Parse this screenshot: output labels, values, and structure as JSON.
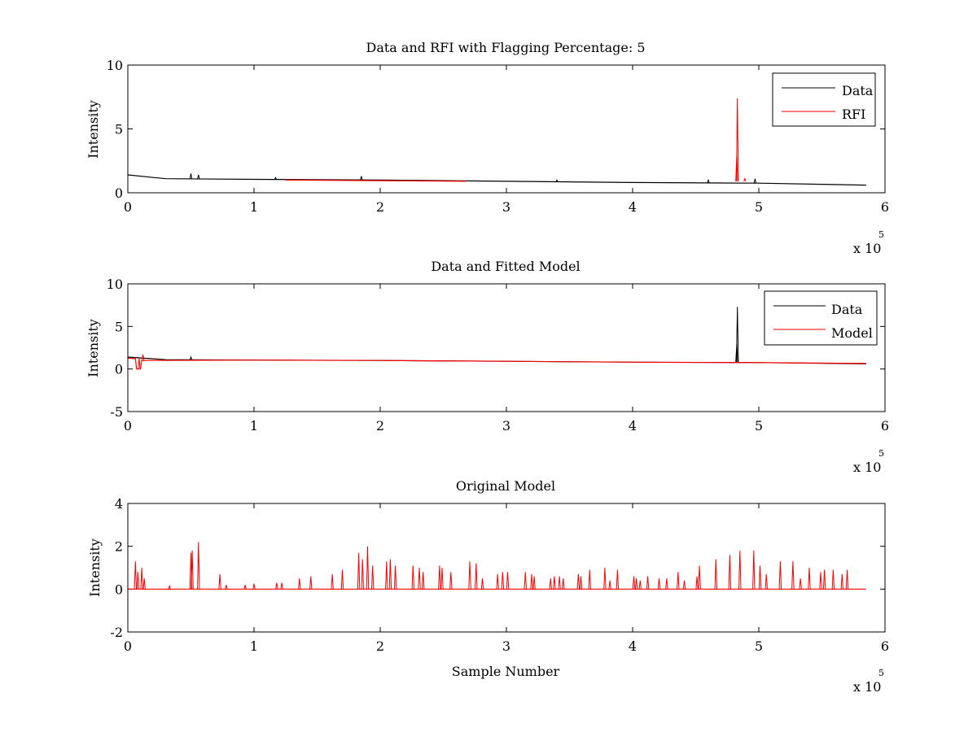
{
  "colors": {
    "data": "#000000",
    "rfi": "#ff0000",
    "model": "#ff0000",
    "axes": "#000000",
    "background": "#ffffff"
  },
  "chart_data": [
    {
      "type": "line",
      "title": "Data and RFI with Flagging Percentage: 5",
      "xlabel": "",
      "ylabel": "Intensity",
      "xlim": [
        0,
        600000
      ],
      "ylim": [
        0,
        10
      ],
      "xticks": [
        "0",
        "1",
        "2",
        "3",
        "4",
        "5",
        "6"
      ],
      "yticks": [
        "0",
        "5",
        "10"
      ],
      "x_exponent": {
        "base": "x 10",
        "power": "5"
      },
      "legend": {
        "location": "top-right",
        "entries": [
          "Data",
          "RFI"
        ]
      },
      "series": [
        {
          "name": "Data",
          "color": "#000000",
          "baseline": [
            [
              0,
              1.4
            ],
            [
              20000,
              1.2
            ],
            [
              30000,
              1.1
            ],
            [
              100000,
              1.05
            ],
            [
              200000,
              1.0
            ],
            [
              300000,
              0.9
            ],
            [
              400000,
              0.8
            ],
            [
              500000,
              0.75
            ],
            [
              585000,
              0.6
            ]
          ],
          "spikes": [
            [
              50000,
              1.5
            ],
            [
              56000,
              1.4
            ],
            [
              117000,
              1.2
            ],
            [
              185000,
              1.3
            ],
            [
              340000,
              1.0
            ],
            [
              460000,
              1.0
            ],
            [
              497000,
              1.1
            ]
          ]
        },
        {
          "name": "RFI",
          "color": "#ff0000",
          "baseline": [
            [
              125000,
              1.0
            ],
            [
              200000,
              0.95
            ],
            [
              268000,
              0.9
            ]
          ],
          "spikes": [
            [
              483000,
              7.4
            ],
            [
              482500,
              2.9
            ],
            [
              489000,
              1.1
            ]
          ]
        }
      ]
    },
    {
      "type": "line",
      "title": "Data and Fitted Model",
      "xlabel": "",
      "ylabel": "Intensity",
      "xlim": [
        0,
        600000
      ],
      "ylim": [
        -5,
        10
      ],
      "xticks": [
        "0",
        "1",
        "2",
        "3",
        "4",
        "5",
        "6"
      ],
      "yticks": [
        "-5",
        "0",
        "5",
        "10"
      ],
      "x_exponent": {
        "base": "x 10",
        "power": "5"
      },
      "legend": {
        "location": "top-right",
        "entries": [
          "Data",
          "Model"
        ]
      },
      "series": [
        {
          "name": "Data",
          "color": "#000000",
          "baseline": [
            [
              0,
              1.4
            ],
            [
              20000,
              1.2
            ],
            [
              30000,
              1.1
            ],
            [
              100000,
              1.05
            ],
            [
              200000,
              1.0
            ],
            [
              300000,
              0.9
            ],
            [
              400000,
              0.8
            ],
            [
              500000,
              0.75
            ],
            [
              585000,
              0.6
            ]
          ],
          "spikes": [
            [
              483000,
              7.3
            ],
            [
              482500,
              2.9
            ],
            [
              50000,
              1.4
            ]
          ]
        },
        {
          "name": "Model",
          "color": "#ff0000",
          "baseline": [
            [
              0,
              1.3
            ],
            [
              6000,
              1.2
            ],
            [
              7000,
              0.0
            ],
            [
              10000,
              0.0
            ],
            [
              11000,
              1.0
            ],
            [
              100000,
              1.05
            ],
            [
              200000,
              1.0
            ],
            [
              300000,
              0.9
            ],
            [
              400000,
              0.8
            ],
            [
              500000,
              0.75
            ],
            [
              585000,
              0.65
            ]
          ],
          "spikes": [
            [
              12000,
              1.7
            ],
            [
              9000,
              1.3
            ]
          ]
        }
      ]
    },
    {
      "type": "line",
      "title": "Original Model",
      "xlabel": "Sample Number",
      "ylabel": "Intensity",
      "xlim": [
        0,
        600000
      ],
      "ylim": [
        -2,
        4
      ],
      "xticks": [
        "0",
        "1",
        "2",
        "3",
        "4",
        "5",
        "6"
      ],
      "yticks": [
        "-2",
        "0",
        "2",
        "4"
      ],
      "x_exponent": {
        "base": "x 10",
        "power": "5"
      },
      "series": [
        {
          "color": "#ff0000",
          "baseline": [
            [
              0,
              0
            ],
            [
              585000,
              0
            ]
          ],
          "spikes": [
            [
              6000,
              1.3
            ],
            [
              8000,
              0.8
            ],
            [
              11000,
              1.0
            ],
            [
              13000,
              0.5
            ],
            [
              33000,
              0.15
            ],
            [
              50000,
              1.7
            ],
            [
              51000,
              1.8
            ],
            [
              56000,
              2.2
            ],
            [
              73000,
              0.7
            ],
            [
              78000,
              0.2
            ],
            [
              93000,
              0.2
            ],
            [
              100000,
              0.25
            ],
            [
              118000,
              0.3
            ],
            [
              122000,
              0.3
            ],
            [
              136000,
              0.5
            ],
            [
              145000,
              0.6
            ],
            [
              162000,
              0.7
            ],
            [
              170000,
              0.9
            ],
            [
              183000,
              1.7
            ],
            [
              186000,
              1.4
            ],
            [
              190000,
              2.0
            ],
            [
              194000,
              1.1
            ],
            [
              205000,
              1.3
            ],
            [
              208000,
              1.4
            ],
            [
              212000,
              1.1
            ],
            [
              226000,
              1.1
            ],
            [
              231000,
              1.0
            ],
            [
              234000,
              0.8
            ],
            [
              247000,
              1.1
            ],
            [
              249000,
              1.0
            ],
            [
              256000,
              0.8
            ],
            [
              271000,
              1.3
            ],
            [
              276000,
              1.2
            ],
            [
              281000,
              0.5
            ],
            [
              293000,
              0.7
            ],
            [
              297000,
              0.8
            ],
            [
              301000,
              0.8
            ],
            [
              315000,
              0.8
            ],
            [
              320000,
              0.7
            ],
            [
              322000,
              0.6
            ],
            [
              335000,
              0.5
            ],
            [
              338000,
              0.6
            ],
            [
              342000,
              0.6
            ],
            [
              345000,
              0.5
            ],
            [
              357000,
              0.7
            ],
            [
              359000,
              0.6
            ],
            [
              366000,
              0.9
            ],
            [
              378000,
              1.0
            ],
            [
              382000,
              0.4
            ],
            [
              388000,
              0.9
            ],
            [
              401000,
              0.6
            ],
            [
              403000,
              0.5
            ],
            [
              406000,
              0.4
            ],
            [
              412000,
              0.6
            ],
            [
              421000,
              0.5
            ],
            [
              427000,
              0.5
            ],
            [
              436000,
              0.8
            ],
            [
              441000,
              0.4
            ],
            [
              451000,
              0.6
            ],
            [
              453000,
              1.1
            ],
            [
              466000,
              1.4
            ],
            [
              477000,
              1.6
            ],
            [
              485000,
              1.8
            ],
            [
              496000,
              1.8
            ],
            [
              501000,
              1.1
            ],
            [
              506000,
              0.7
            ],
            [
              517000,
              1.3
            ],
            [
              527000,
              1.3
            ],
            [
              533000,
              0.5
            ],
            [
              540000,
              1.0
            ],
            [
              549000,
              0.8
            ],
            [
              552000,
              0.9
            ],
            [
              559000,
              0.9
            ],
            [
              566000,
              0.7
            ],
            [
              570000,
              0.9
            ]
          ]
        }
      ]
    }
  ]
}
